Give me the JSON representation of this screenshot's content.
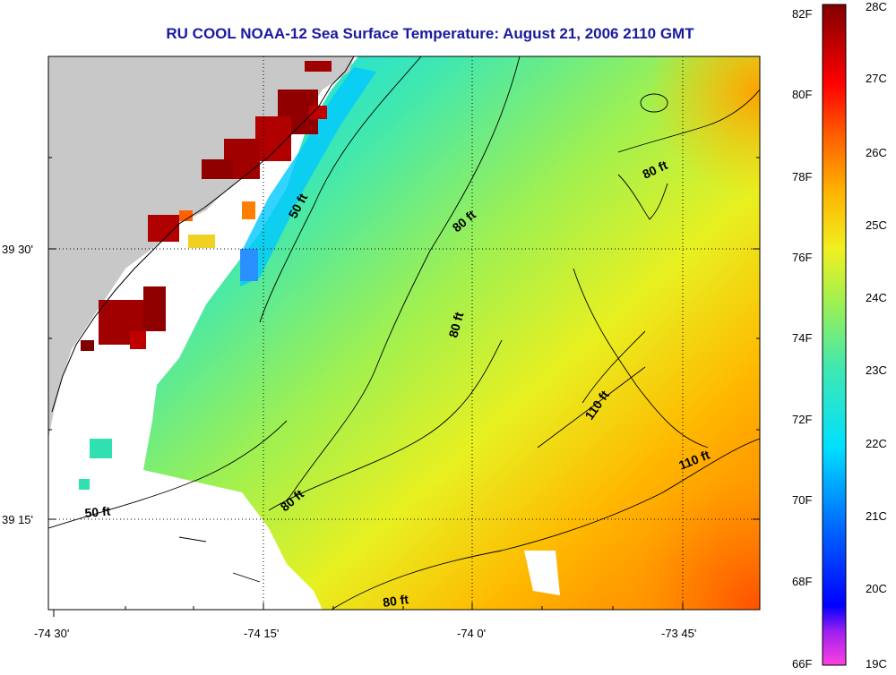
{
  "title": "RU COOL  NOAA-12  Sea Surface Temperature:  August 21, 2006 2110 GMT",
  "lon_ticks": [
    "-74 30'",
    "-74 15'",
    "-74 0'",
    "-73 45'"
  ],
  "lat_ticks": [
    "39 30'",
    "39 15'"
  ],
  "contour_labels": [
    "50 ft",
    "50 ft",
    "80 ft",
    "80 ft",
    "80 ft",
    "80 ft",
    "80 ft",
    "110 ft",
    "110 ft"
  ],
  "colorbar": {
    "f_labels": [
      "82F",
      "80F",
      "78F",
      "76F",
      "74F",
      "72F",
      "70F",
      "68F",
      "66F"
    ],
    "c_labels": [
      "28C",
      "27C",
      "26C",
      "25C",
      "24C",
      "23C",
      "22C",
      "21C",
      "20C",
      "19C"
    ],
    "colors": [
      "#ff40e0",
      "#8000ff",
      "#0000ff",
      "#0078ff",
      "#00e0ff",
      "#30e0b0",
      "#90f060",
      "#e8f020",
      "#ffb000",
      "#ff6000",
      "#ff0000",
      "#a00000",
      "#800000"
    ]
  },
  "colors": {
    "land": "#c8c8c8",
    "cloud": "#ffffff",
    "title": "#1a1aa0"
  }
}
